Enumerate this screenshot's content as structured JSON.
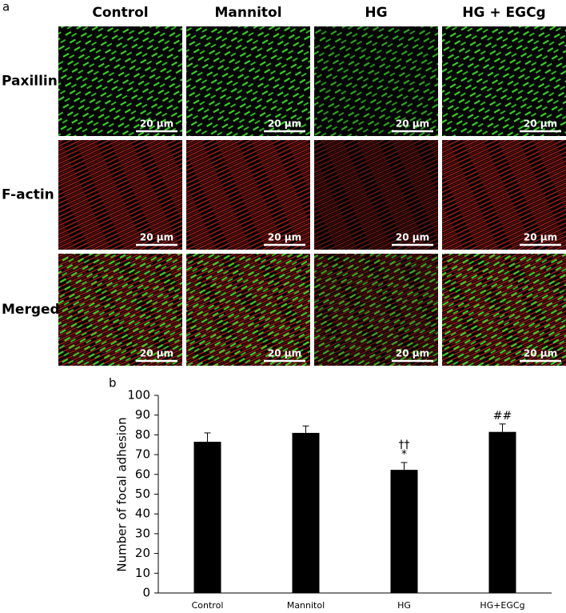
{
  "panel_a": {
    "label": "a",
    "columns": [
      "Control",
      "Mannitol",
      "HG",
      "HG + EGCg"
    ],
    "rows": [
      "Paxillin",
      "F-actin",
      "Merged"
    ],
    "scale_bar": "20 μm"
  },
  "chart_data": {
    "type": "bar",
    "panel_label": "b",
    "ylabel": "Number of focal adhesion",
    "categories": [
      "Control",
      "Mannitol",
      "HG",
      "HG+EGCg"
    ],
    "values": [
      76.5,
      81,
      62.3,
      81.5
    ],
    "errors": [
      4.5,
      3.5,
      3.7,
      4
    ],
    "color": "#000000",
    "annotations": [
      null,
      null,
      [
        "††",
        "*"
      ],
      [
        "##"
      ]
    ],
    "ylim": [
      0,
      100
    ],
    "yticks": [
      0,
      10,
      20,
      30,
      40,
      50,
      60,
      70,
      80,
      90,
      100
    ]
  }
}
